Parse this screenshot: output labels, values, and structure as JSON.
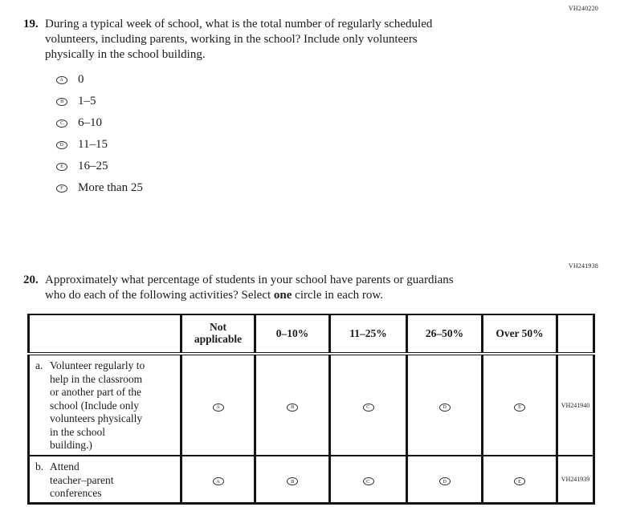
{
  "codes": {
    "q19": "VH240220",
    "q20": "VH241938"
  },
  "q19": {
    "number": "19.",
    "text": "During a typical week of school, what is the total number of regularly scheduled\nvolunteers, including parents, working in the school? Include only volunteers\nphysically in the school building.",
    "options": [
      {
        "letter": "A",
        "label": "0"
      },
      {
        "letter": "B",
        "label": "1–5"
      },
      {
        "letter": "C",
        "label": "6–10"
      },
      {
        "letter": "D",
        "label": "11–15"
      },
      {
        "letter": "E",
        "label": "16–25"
      },
      {
        "letter": "F",
        "label": "More than 25"
      }
    ]
  },
  "q20": {
    "number": "20.",
    "text_1": "Approximately what percentage of students in your school have parents or guardians\nwho do each of the following activities? Select ",
    "bold_word": "one",
    "text_2": " circle in each row.",
    "table": {
      "col_headers": [
        "Not\napplicable",
        "0–10%",
        "11–25%",
        "26–50%",
        "Over 50%"
      ],
      "bubble_letters": [
        "A",
        "B",
        "C",
        "D",
        "E"
      ],
      "rows": [
        {
          "prefix": "a.",
          "text": "Volunteer regularly to\nhelp in the classroom\nor another part of the\nschool (Include only\nvolunteers physically\nin the school\nbuilding.)",
          "code": "VH241940"
        },
        {
          "prefix": "b.",
          "text": "Attend\nteacher–parent\nconferences",
          "code": "VH241939"
        }
      ]
    }
  }
}
